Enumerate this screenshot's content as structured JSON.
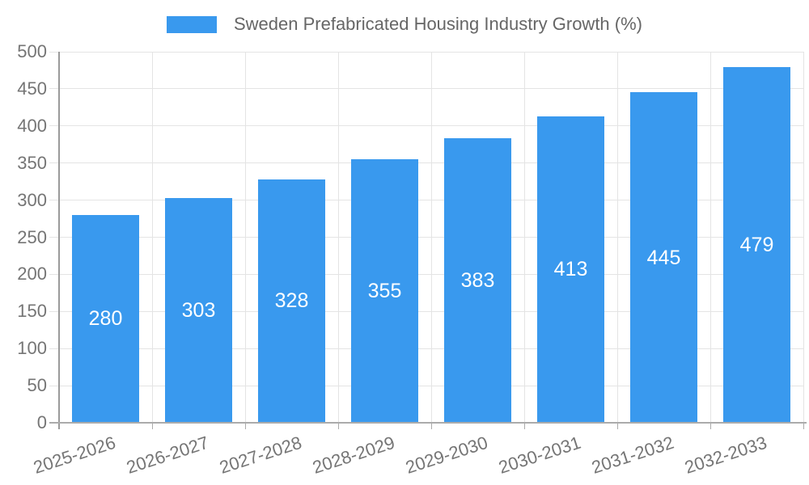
{
  "legend": {
    "label": "Sweden Prefabricated Housing Industry Growth (%)"
  },
  "chart_data": {
    "type": "bar",
    "title": "Sweden Prefabricated Housing Industry Growth (%)",
    "categories": [
      "2025-2026",
      "2026-2027",
      "2027-2028",
      "2028-2029",
      "2029-2030",
      "2030-2031",
      "2031-2032",
      "2032-2033"
    ],
    "values": [
      280,
      303,
      328,
      355,
      383,
      413,
      445,
      479
    ],
    "series_name": "Sweden Prefabricated Housing Industry Growth (%)",
    "xlabel": "",
    "ylabel": "",
    "ylim": [
      0,
      500
    ],
    "ytick_step": 50,
    "grid": "on",
    "legend_position": "top",
    "bar_color": "#3999EE",
    "value_label_color": "#FFFFFF",
    "axis_text_color": "#757575",
    "legend_text_color": "#666666",
    "grid_color": "#E4E4E4",
    "axis_line_color": "#ABABAB",
    "y_axis_line_color": "#9A9A9A"
  }
}
